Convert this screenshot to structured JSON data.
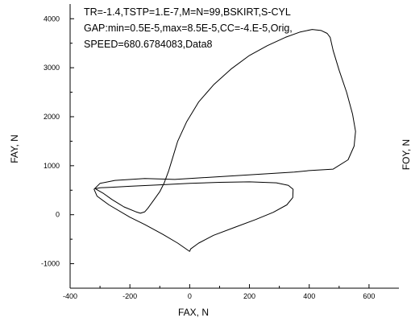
{
  "chart_data": {
    "type": "line",
    "title": "",
    "xlabel": "FAX, N",
    "ylabel": "FAY, N",
    "y2label": "FOY, N",
    "xlim": [
      -400,
      700
    ],
    "ylim": [
      -1500,
      4300
    ],
    "xticks": [
      -400,
      -200,
      0,
      200,
      400,
      600
    ],
    "yticks": [
      -1000,
      0,
      1000,
      2000,
      3000,
      4000
    ],
    "grid": false,
    "annotations": [
      "TR=-1.4,TSTP=1.E-7,M=N=99,BSKIRT,S-CYL",
      "GAP:min=0.5E-5,max=8.5E-5,CC=-4.E-5,Orig,",
      "SPEED=680.6784083,Data8"
    ],
    "series": [
      {
        "x": [
          0,
          3,
          30,
          80,
          150,
          220,
          280,
          325,
          345,
          346,
          330,
          290,
          200,
          100,
          0,
          -100,
          -200,
          -260,
          -300,
          -315,
          -310,
          -290,
          -260,
          -220,
          -180,
          -165,
          -150,
          -140,
          -120,
          -100,
          -85,
          -70,
          -60,
          -40,
          -10,
          30,
          80,
          140,
          200,
          260,
          320,
          370,
          410,
          440,
          460,
          470,
          480,
          500,
          525,
          545,
          555,
          550,
          530,
          480,
          400,
          350,
          -50,
          -150,
          -250,
          -300,
          -320,
          -310,
          -270,
          -200,
          -150,
          -90,
          -40,
          0
        ],
        "y": [
          -750,
          -700,
          -580,
          -420,
          -260,
          -100,
          50,
          200,
          350,
          520,
          600,
          650,
          670,
          660,
          640,
          610,
          580,
          560,
          550,
          530,
          510,
          440,
          310,
          160,
          60,
          30,
          60,
          130,
          300,
          470,
          650,
          900,
          1100,
          1500,
          1900,
          2300,
          2650,
          2980,
          3250,
          3450,
          3620,
          3730,
          3780,
          3760,
          3700,
          3620,
          3350,
          2950,
          2500,
          2050,
          1700,
          1400,
          1120,
          930,
          900,
          870,
          720,
          740,
          700,
          640,
          520,
          380,
          200,
          -50,
          -200,
          -400,
          -580,
          -750
        ]
      }
    ]
  }
}
